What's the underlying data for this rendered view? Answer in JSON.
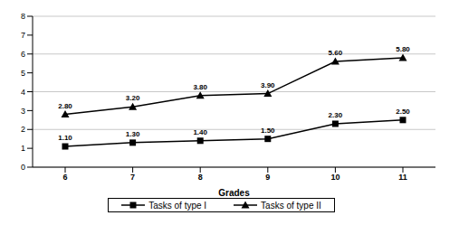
{
  "chart_data": {
    "type": "line",
    "xlabel": "Grades",
    "categories": [
      "6",
      "7",
      "8",
      "9",
      "10",
      "11"
    ],
    "series": [
      {
        "name": "Tasks of type I",
        "color": "#000000",
        "marker": "square",
        "values": [
          1.1,
          1.3,
          1.4,
          1.5,
          2.3,
          2.5
        ],
        "value_labels": [
          "1.10",
          "1.30",
          "1.40",
          "1.50",
          "2.30",
          "2.50"
        ]
      },
      {
        "name": "Tasks of type II",
        "color": "#000000",
        "marker": "triangle",
        "values": [
          2.8,
          3.2,
          3.8,
          3.9,
          5.6,
          5.8
        ],
        "value_labels": [
          "2.80",
          "3.20",
          "3.80",
          "3.90",
          "5.60",
          "5.80"
        ]
      }
    ],
    "ylim": [
      0,
      8
    ],
    "yticks": [
      0,
      1,
      2,
      3,
      4,
      5,
      6,
      7,
      8
    ],
    "grid": true,
    "data_labels": true,
    "legend": "bottom"
  }
}
